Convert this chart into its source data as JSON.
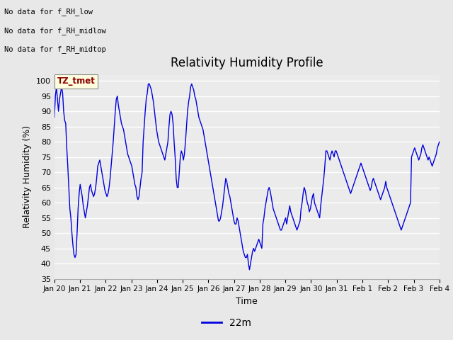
{
  "title": "Relativity Humidity Profile",
  "ylabel": "Relativity Humidity (%)",
  "xlabel": "Time",
  "legend_label": "22m",
  "line_color": "#0000dd",
  "ylim": [
    35,
    102
  ],
  "yticks": [
    35,
    40,
    45,
    50,
    55,
    60,
    65,
    70,
    75,
    80,
    85,
    90,
    95,
    100
  ],
  "background_color": "#e8e8e8",
  "plot_bg_color": "#ebebeb",
  "grid_color": "#ffffff",
  "no_data_labels": [
    "No data for f_RH_low",
    "No data for f_RH_midlow",
    "No data for f_RH_midtop"
  ],
  "tz_label": "TZ_tmet",
  "x_tick_labels": [
    "Jan 20",
    "Jan 21",
    "Jan 22",
    "Jan 23",
    "Jan 24",
    "Jan 25",
    "Jan 26",
    "Jan 27",
    "Jan 28",
    "Jan 29",
    "Jan 30",
    "Jan 31",
    "Feb 1",
    "Feb 2",
    "Feb 3",
    "Feb 4"
  ],
  "rh_values": [
    88,
    95,
    98,
    94,
    90,
    94,
    96,
    98,
    96,
    90,
    87,
    86,
    78,
    72,
    65,
    58,
    55,
    50,
    46,
    43,
    42,
    43,
    50,
    58,
    63,
    66,
    64,
    62,
    59,
    57,
    55,
    57,
    59,
    62,
    65,
    66,
    64,
    63,
    62,
    63,
    65,
    68,
    72,
    73,
    74,
    72,
    70,
    68,
    66,
    64,
    63,
    62,
    63,
    65,
    68,
    72,
    76,
    80,
    85,
    90,
    94,
    95,
    92,
    90,
    88,
    86,
    85,
    84,
    82,
    80,
    78,
    76,
    75,
    74,
    73,
    72,
    70,
    68,
    66,
    65,
    62,
    61,
    62,
    65,
    68,
    70,
    80,
    85,
    90,
    94,
    96,
    99,
    99,
    98,
    97,
    95,
    93,
    90,
    87,
    84,
    82,
    80,
    79,
    78,
    77,
    76,
    75,
    74,
    76,
    78,
    80,
    85,
    89,
    90,
    89,
    86,
    80,
    75,
    68,
    65,
    65,
    70,
    75,
    77,
    76,
    74,
    76,
    80,
    85,
    90,
    93,
    95,
    98,
    99,
    98,
    97,
    95,
    94,
    92,
    90,
    88,
    87,
    86,
    85,
    84,
    82,
    80,
    78,
    76,
    74,
    72,
    70,
    68,
    66,
    64,
    62,
    60,
    58,
    56,
    54,
    54,
    55,
    57,
    59,
    62,
    65,
    68,
    67,
    65,
    63,
    62,
    60,
    58,
    56,
    54,
    53,
    53,
    55,
    54,
    52,
    50,
    48,
    46,
    44,
    43,
    42,
    42,
    43,
    40,
    38,
    40,
    42,
    44,
    45,
    44,
    45,
    46,
    47,
    48,
    47,
    46,
    45,
    53,
    55,
    58,
    60,
    62,
    64,
    65,
    64,
    62,
    60,
    58,
    57,
    56,
    55,
    54,
    53,
    52,
    51,
    51,
    52,
    53,
    54,
    55,
    53,
    55,
    57,
    59,
    57,
    56,
    55,
    54,
    53,
    52,
    51,
    52,
    53,
    54,
    58,
    60,
    63,
    65,
    64,
    62,
    60,
    59,
    57,
    58,
    60,
    62,
    63,
    60,
    59,
    58,
    57,
    56,
    55,
    59,
    62,
    65,
    68,
    72,
    77,
    77,
    76,
    75,
    74,
    76,
    77,
    76,
    75,
    77,
    77,
    76,
    75,
    74,
    73,
    72,
    71,
    70,
    69,
    68,
    67,
    66,
    65,
    64,
    63,
    64,
    65,
    66,
    67,
    68,
    69,
    70,
    71,
    72,
    73,
    72,
    71,
    70,
    69,
    68,
    67,
    66,
    65,
    64,
    65,
    67,
    68,
    67,
    66,
    65,
    64,
    63,
    62,
    61,
    62,
    63,
    64,
    65,
    67,
    65,
    64,
    63,
    62,
    61,
    60,
    59,
    58,
    57,
    56,
    55,
    54,
    53,
    52,
    51,
    52,
    53,
    54,
    55,
    56,
    57,
    58,
    59,
    60,
    75,
    76,
    77,
    78,
    77,
    76,
    75,
    74,
    75,
    76,
    78,
    79,
    78,
    77,
    76,
    75,
    74,
    75,
    74,
    73,
    72,
    73,
    74,
    75,
    76,
    78,
    79,
    80
  ]
}
